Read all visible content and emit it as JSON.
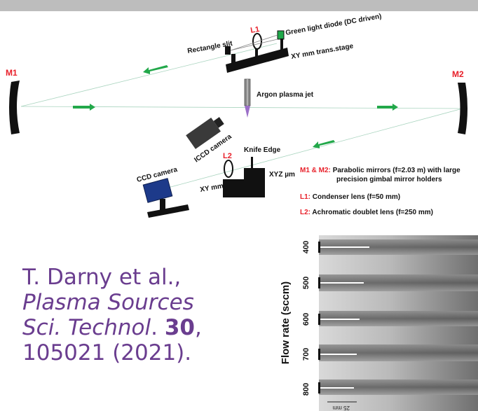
{
  "diagram": {
    "labels": {
      "m1": "M1",
      "m2": "M2",
      "l1": "L1",
      "l2": "L2",
      "rect_slit": "Rectangle slit",
      "green_diode": "Green light diode (DC driven)",
      "xy_stage": "XY mm trans.stage",
      "argon_jet": "Argon plasma jet",
      "iccd": "ICCD camera",
      "knife_edge": "Knife Edge",
      "ccd": "CCD camera",
      "xy_mm": "XY mm",
      "xyz_um": "XYZ µm"
    },
    "legend": {
      "line1_key": "M1 & M2:",
      "line1_text": "Parabolic mirrors (f=2.03 m) with large",
      "line1b_text": "precision gimbal mirror holders",
      "line2_key": "L1:",
      "line2_text": "Condenser lens (f=50 mm)",
      "line3_key": "L2:",
      "line3_text": "Achromatic doublet lens (f=250 mm)"
    }
  },
  "citation": {
    "line1": "T. Darny et al.,",
    "line2": "Plasma Sources",
    "line3_pre": "Sci. Technol",
    "line3_post": ".",
    "volume": "30",
    "comma": ",",
    "line4": "105021 (2021)."
  },
  "schlieren": {
    "axis_label": "Flow rate (sccm)",
    "ticks": [
      "400",
      "500",
      "600",
      "700",
      "800"
    ],
    "scale_label": "25 mm"
  },
  "colors": {
    "mirror_label": "#e8202a",
    "arrow": "#22a84a",
    "citation": "#6a3d8f",
    "ccd": "#1d3a8a",
    "diode": "#1fa84a"
  }
}
